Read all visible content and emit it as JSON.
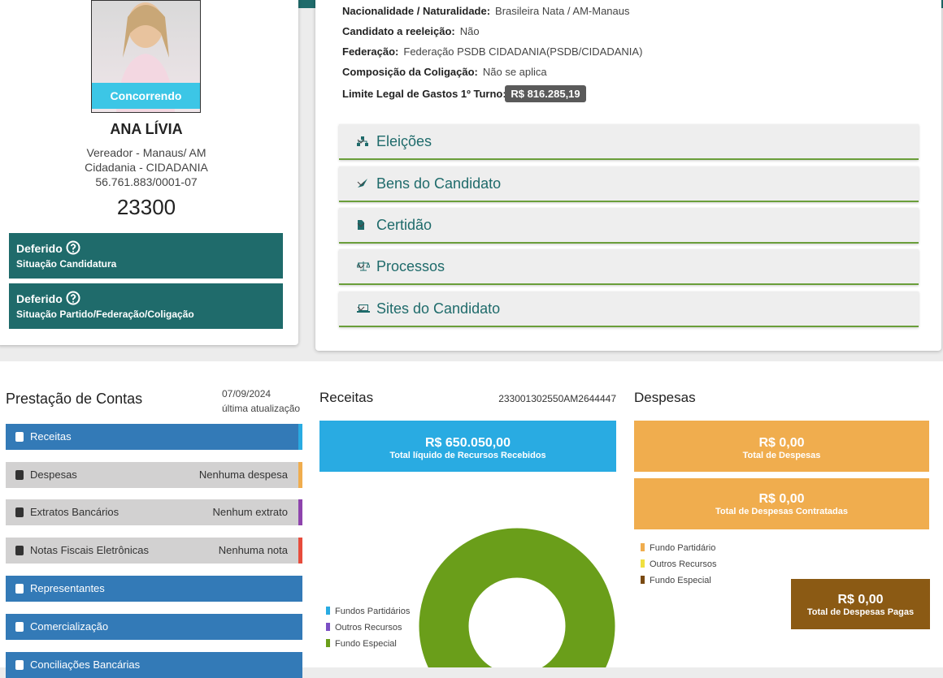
{
  "candidate": {
    "status_button": "Concorrendo",
    "name": "ANA LÍVIA",
    "lines": [
      "Vereador - Manaus/ AM",
      "Cidadania - CIDADANIA",
      "56.761.883/0001-07"
    ],
    "number": "23300",
    "situations": [
      {
        "status": "Deferido",
        "label": "Situação Candidatura"
      },
      {
        "status": "Deferido",
        "label": "Situação Partido/Federação/Coligação"
      }
    ]
  },
  "details": {
    "rows": [
      {
        "label": "Nacionalidade / Naturalidade:",
        "value": "Brasileira Nata / AM-Manaus"
      },
      {
        "label": "Candidato a reeleição:",
        "value": "Não"
      },
      {
        "label": "Federação:",
        "value": "Federação PSDB CIDADANIA(PSDB/CIDADANIA)"
      },
      {
        "label": "Composição da Coligação:",
        "value": "Não se aplica"
      }
    ],
    "limit": {
      "label": "Limite Legal de Gastos 1º Turno:",
      "value": "R$ 816.285,19"
    }
  },
  "accordions": [
    "Eleições",
    "Bens do Candidato",
    "Certidão",
    "Processos",
    "Sites do Candidato"
  ],
  "prestacao": {
    "title": "Prestação de Contas",
    "date": "07/09/2024",
    "date_note": "última atualização",
    "items": [
      {
        "label": "Receitas"
      },
      {
        "label": "Despesas",
        "note": "Nenhuma despesa"
      },
      {
        "label": "Extratos Bancários",
        "note": "Nenhum extrato"
      },
      {
        "label": "Notas Fiscais Eletrônicas",
        "note": "Nenhuma nota"
      },
      {
        "label": "Representantes"
      },
      {
        "label": "Comercialização"
      },
      {
        "label": "Conciliações Bancárias"
      }
    ]
  },
  "receitas": {
    "title": "Receitas",
    "id": "233001302550AM2644447",
    "total": {
      "value": "R$ 650.050,00",
      "label": "Total líquido de Recursos Recebidos"
    }
  },
  "chart_data": {
    "type": "donut",
    "categories": [
      "Fundos Partidários",
      "Outros Recursos",
      "Fundo Especial"
    ],
    "values": [
      0,
      0,
      100
    ],
    "colors": [
      "#29abe2",
      "#7b4fc4",
      "#6a9e1a"
    ]
  },
  "despesas": {
    "title": "Despesas",
    "boxes": [
      {
        "value": "R$ 0,00",
        "label": "Total de Despesas"
      },
      {
        "value": "R$ 0,00",
        "label": "Total de Despesas Contratadas"
      }
    ],
    "legend": [
      "Fundo Partidário",
      "Outros Recursos",
      "Fundo Especial"
    ],
    "paid": {
      "value": "R$ 0,00",
      "label": "Total de Despesas Pagas"
    }
  }
}
